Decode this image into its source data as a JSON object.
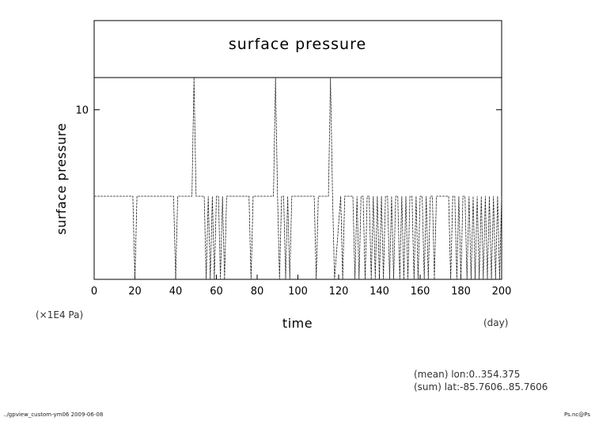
{
  "chart_data": {
    "type": "line",
    "title": "surface pressure",
    "xlabel": "time",
    "ylabel": "surface pressure",
    "x_unit": "(day)",
    "y_unit": "(×1E4 Pa)",
    "xlim": [
      0,
      200
    ],
    "ylim": [
      0,
      11.9
    ],
    "x_ticks": [
      0,
      20,
      40,
      60,
      80,
      100,
      120,
      140,
      160,
      180,
      200
    ],
    "x_tick_labels": [
      "0",
      "20",
      "40",
      "60",
      "80",
      "100",
      "120",
      "140",
      "160",
      "180",
      "200"
    ],
    "y_ticks": [
      10
    ],
    "y_tick_labels": [
      "10"
    ],
    "grid": false,
    "series": [
      {
        "x": [
          0,
          19,
          20,
          21,
          39,
          40,
          41,
          48,
          49,
          50,
          51,
          54,
          55,
          56,
          57,
          58,
          59,
          60,
          61,
          62,
          63,
          64,
          65,
          66,
          76,
          77,
          78,
          88,
          89,
          90,
          91,
          92,
          93,
          94,
          95,
          96,
          97,
          108,
          109,
          110,
          111,
          115,
          116,
          117,
          118,
          121,
          122,
          123,
          124,
          125,
          126,
          127,
          128,
          129,
          130,
          131,
          132,
          133,
          134,
          135,
          136,
          137,
          138,
          139,
          140,
          141,
          142,
          143,
          144,
          145,
          146,
          147,
          148,
          149,
          150,
          151,
          152,
          153,
          154,
          155,
          156,
          157,
          158,
          159,
          160,
          161,
          162,
          163,
          164,
          165,
          166,
          167,
          168,
          169,
          170,
          171,
          172,
          173,
          174,
          175,
          176,
          177,
          178,
          179,
          180,
          181,
          182,
          183,
          184,
          185,
          186,
          187,
          188,
          189,
          190,
          191,
          192,
          193,
          194,
          195,
          196,
          197,
          198,
          199,
          200
        ],
        "values": [
          4.9,
          4.9,
          0.0,
          4.9,
          4.9,
          0.0,
          4.9,
          4.9,
          11.9,
          4.9,
          4.9,
          4.9,
          0.0,
          4.9,
          0.0,
          4.9,
          0.0,
          4.9,
          4.9,
          0.0,
          4.9,
          0.0,
          4.9,
          4.9,
          4.9,
          0.0,
          4.9,
          4.9,
          11.9,
          4.9,
          0.0,
          4.9,
          4.9,
          0.0,
          4.9,
          0.0,
          4.9,
          4.9,
          0.0,
          4.9,
          4.9,
          4.9,
          11.9,
          4.9,
          0.0,
          4.9,
          0.0,
          4.9,
          4.9,
          4.9,
          4.9,
          4.9,
          0.0,
          4.9,
          0.0,
          4.9,
          4.9,
          0.0,
          4.9,
          4.9,
          0.0,
          4.9,
          0.0,
          4.9,
          0.0,
          4.9,
          0.0,
          4.9,
          4.9,
          0.0,
          4.9,
          0.0,
          4.9,
          4.9,
          0.0,
          4.9,
          0.0,
          4.9,
          0.0,
          4.9,
          4.9,
          0.0,
          4.9,
          0.0,
          4.9,
          4.9,
          0.0,
          4.9,
          0.0,
          4.9,
          4.9,
          0.0,
          4.9,
          4.9,
          4.9,
          4.9,
          4.9,
          4.9,
          4.9,
          0.0,
          4.9,
          4.9,
          0.0,
          4.9,
          0.0,
          4.9,
          4.9,
          0.0,
          4.9,
          0.0,
          4.9,
          0.0,
          4.9,
          0.0,
          4.9,
          0.0,
          4.9,
          0.0,
          4.9,
          0.0,
          4.9,
          0.0,
          4.9,
          0.0,
          4.9
        ]
      }
    ]
  },
  "annotations": {
    "mean_line": "(mean) lon:0..354.375",
    "sum_line": "(sum) lat:-85.7606..85.7606",
    "footer_left": "../gpview_custom-ym06  2009-06-08",
    "footer_right": "Ps.nc@Ps"
  }
}
